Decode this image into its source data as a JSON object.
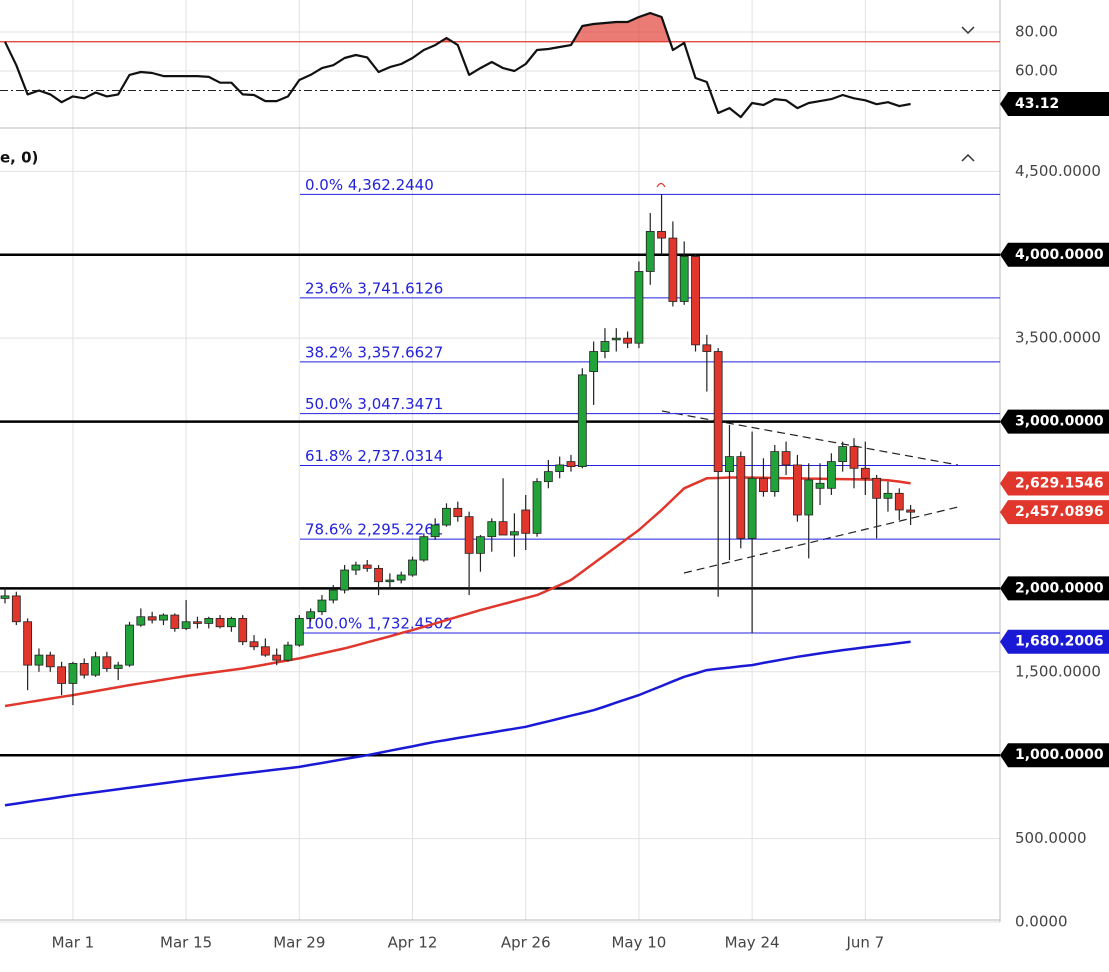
{
  "chart_data": [
    {
      "type": "candlestick",
      "label": "e, 0)",
      "categories": [
        null,
        null,
        null,
        null,
        null,
        null,
        "Mar 1",
        null,
        null,
        null,
        null,
        null,
        null,
        null,
        null,
        null,
        "Mar 15",
        null,
        null,
        null,
        null,
        null,
        null,
        null,
        null,
        null,
        "Mar 29",
        null,
        null,
        null,
        null,
        null,
        null,
        null,
        null,
        null,
        "Apr 12",
        null,
        null,
        null,
        null,
        null,
        null,
        null,
        null,
        null,
        "Apr 26",
        null,
        null,
        null,
        null,
        null,
        null,
        null,
        null,
        null,
        "May 10",
        null,
        null,
        null,
        null,
        null,
        null,
        null,
        null,
        null,
        "May 24",
        null,
        null,
        null,
        null,
        null,
        null,
        null,
        null,
        null,
        "Jun 7",
        null,
        null,
        null,
        null
      ],
      "candles": [
        [
          1940,
          2000,
          1910,
          1955
        ],
        [
          1955,
          1980,
          1780,
          1800
        ],
        [
          1800,
          1820,
          1390,
          1540
        ],
        [
          1540,
          1640,
          1500,
          1600
        ],
        [
          1600,
          1620,
          1500,
          1530
        ],
        [
          1530,
          1560,
          1360,
          1430
        ],
        [
          1430,
          1560,
          1300,
          1550
        ],
        [
          1550,
          1580,
          1460,
          1480
        ],
        [
          1480,
          1620,
          1470,
          1590
        ],
        [
          1590,
          1620,
          1500,
          1520
        ],
        [
          1520,
          1560,
          1450,
          1540
        ],
        [
          1540,
          1800,
          1530,
          1780
        ],
        [
          1780,
          1880,
          1770,
          1830
        ],
        [
          1830,
          1860,
          1790,
          1810
        ],
        [
          1810,
          1850,
          1780,
          1840
        ],
        [
          1840,
          1850,
          1740,
          1760
        ],
        [
          1760,
          1930,
          1750,
          1800
        ],
        [
          1800,
          1830,
          1760,
          1790
        ],
        [
          1790,
          1830,
          1760,
          1820
        ],
        [
          1820,
          1840,
          1760,
          1770
        ],
        [
          1770,
          1830,
          1740,
          1820
        ],
        [
          1820,
          1840,
          1660,
          1680
        ],
        [
          1680,
          1720,
          1630,
          1650
        ],
        [
          1650,
          1700,
          1590,
          1600
        ],
        [
          1600,
          1640,
          1540,
          1570
        ],
        [
          1570,
          1680,
          1560,
          1660
        ],
        [
          1660,
          1840,
          1650,
          1820
        ],
        [
          1820,
          1880,
          1800,
          1860
        ],
        [
          1860,
          1960,
          1840,
          1930
        ],
        [
          1930,
          2020,
          1910,
          1990
        ],
        [
          1990,
          2140,
          1970,
          2110
        ],
        [
          2110,
          2160,
          2080,
          2140
        ],
        [
          2140,
          2170,
          2100,
          2120
        ],
        [
          2120,
          2140,
          1960,
          2040
        ],
        [
          2040,
          2090,
          2000,
          2050
        ],
        [
          2050,
          2100,
          2030,
          2080
        ],
        [
          2080,
          2190,
          2070,
          2170
        ],
        [
          2170,
          2330,
          2160,
          2310
        ],
        [
          2310,
          2420,
          2290,
          2380
        ],
        [
          2380,
          2510,
          2370,
          2480
        ],
        [
          2480,
          2520,
          2400,
          2430
        ],
        [
          2430,
          2460,
          1960,
          2210
        ],
        [
          2210,
          2320,
          2100,
          2310
        ],
        [
          2310,
          2420,
          2220,
          2400
        ],
        [
          2400,
          2660,
          2350,
          2320
        ],
        [
          2320,
          2450,
          2190,
          2340
        ],
        [
          2470,
          2560,
          2230,
          2330
        ],
        [
          2330,
          2660,
          2310,
          2640
        ],
        [
          2640,
          2770,
          2600,
          2700
        ],
        [
          2700,
          2790,
          2660,
          2740
        ],
        [
          2760,
          2800,
          2700,
          2730
        ],
        [
          2730,
          3320,
          2720,
          3280
        ],
        [
          3300,
          3480,
          3100,
          3420
        ],
        [
          3420,
          3560,
          3380,
          3480
        ],
        [
          3490,
          3560,
          3420,
          3500
        ],
        [
          3500,
          3540,
          3440,
          3470
        ],
        [
          3470,
          3960,
          3440,
          3900
        ],
        [
          3900,
          4250,
          3820,
          4140
        ],
        [
          4140,
          4362.244,
          4000,
          4100
        ],
        [
          4100,
          4200,
          3690,
          3720
        ],
        [
          3720,
          4080,
          3700,
          3990
        ],
        [
          3990,
          4000,
          3420,
          3460
        ],
        [
          3460,
          3520,
          3180,
          3420
        ],
        [
          3420,
          3440,
          1950,
          2700
        ],
        [
          2700,
          2980,
          2170,
          2790
        ],
        [
          2790,
          2820,
          2240,
          2300
        ],
        [
          2300,
          2940,
          1732.4502,
          2660
        ],
        [
          2660,
          2780,
          2550,
          2580
        ],
        [
          2580,
          2860,
          2550,
          2820
        ],
        [
          2820,
          2880,
          2680,
          2740
        ],
        [
          2740,
          2800,
          2400,
          2440
        ],
        [
          2440,
          2750,
          2180,
          2650
        ],
        [
          2600,
          2750,
          2500,
          2630
        ],
        [
          2600,
          2810,
          2560,
          2760
        ],
        [
          2760,
          2880,
          2700,
          2850
        ],
        [
          2850,
          2900,
          2600,
          2720
        ],
        [
          2720,
          2880,
          2560,
          2660
        ],
        [
          2660,
          2680,
          2300,
          2540
        ],
        [
          2540,
          2640,
          2460,
          2570
        ],
        [
          2570,
          2600,
          2410,
          2470
        ],
        [
          2470,
          2500,
          2380,
          2457.0896
        ]
      ],
      "close_label": "2,457.0896",
      "up_color": "#22a33a",
      "down_color": "#e0362b",
      "overlays": [
        {
          "color": "#e0362b",
          "last_label": "2,629.1546",
          "values": [
            1295,
            1306,
            1317,
            1328,
            1339,
            1350,
            1360,
            1372,
            1384,
            1396,
            1408,
            1420,
            1431,
            1442,
            1453,
            1464,
            1475,
            1484,
            1493,
            1502,
            1511,
            1520,
            1532,
            1544,
            1556,
            1568,
            1580,
            1595,
            1610,
            1625,
            1640,
            1658,
            1677,
            1695,
            1713,
            1732,
            1750,
            1770,
            1790,
            1810,
            1830,
            1850,
            1870,
            1888,
            1906,
            1924,
            1942,
            1960,
            1990,
            2020,
            2050,
            2100,
            2150,
            2200,
            2250,
            2300,
            2350,
            2410,
            2470,
            2535,
            2600,
            2630,
            2660,
            2662,
            2665,
            2665,
            2664,
            2663,
            2662,
            2660,
            2660,
            2658,
            2657,
            2656,
            2655,
            2654,
            2653,
            2652,
            2648,
            2640,
            2629.1546
          ]
        },
        {
          "color": "#1a1ad6",
          "last_label": "1,680.2006",
          "values": [
            700,
            710,
            720,
            730,
            740,
            750,
            760,
            769,
            778,
            787,
            796,
            805,
            814,
            823,
            832,
            841,
            850,
            858,
            866,
            874,
            882,
            890,
            898,
            906,
            914,
            922,
            930,
            942,
            953,
            965,
            977,
            988,
            1000,
            1013,
            1027,
            1040,
            1053,
            1067,
            1080,
            1091,
            1103,
            1114,
            1125,
            1136,
            1148,
            1159,
            1170,
            1187,
            1203,
            1220,
            1237,
            1253,
            1270,
            1292,
            1315,
            1338,
            1360,
            1388,
            1415,
            1443,
            1470,
            1490,
            1510,
            1518,
            1525,
            1533,
            1540,
            1553,
            1565,
            1578,
            1590,
            1600,
            1610,
            1620,
            1630,
            1638,
            1647,
            1655,
            1663,
            1672,
            1680.2006
          ]
        }
      ],
      "levels": [
        {
          "value": 4000,
          "label": "4,000.0000"
        },
        {
          "value": 3000,
          "label": "3,000.0000"
        },
        {
          "value": 2000,
          "label": "2,000.0000"
        },
        {
          "value": 1000,
          "label": "1,000.0000"
        }
      ],
      "fib": [
        {
          "value": 4362.244,
          "label": "0.0% 4,362.2440"
        },
        {
          "value": 3741.6126,
          "label": "23.6% 3,741.6126"
        },
        {
          "value": 3357.6627,
          "label": "38.2% 3,357.6627"
        },
        {
          "value": 3047.3471,
          "label": "50.0% 3,047.3471"
        },
        {
          "value": 2737.0314,
          "label": "61.8% 2,737.0314"
        },
        {
          "value": 2295.2261,
          "label": "78.6% 2,295.2261"
        },
        {
          "value": 1732.4502,
          "label": "100.0% 1,732.4502"
        }
      ],
      "fib_color": "#2222dd",
      "ylim": [
        0,
        4760
      ],
      "yticks": [
        {
          "value": 0,
          "label": "0.0000"
        },
        {
          "value": 500,
          "label": "500.0000"
        },
        {
          "value": 1500,
          "label": "1,500.0000"
        },
        {
          "value": 3500,
          "label": "3,500.0000"
        },
        {
          "value": 4500,
          "label": "4,500.0000"
        }
      ],
      "grid": true
    },
    {
      "type": "line",
      "color": "#111111",
      "values": [
        75,
        63,
        48,
        50,
        48,
        44,
        47,
        46,
        49,
        47,
        48,
        58,
        59.5,
        59,
        57.4,
        57.4,
        57.4,
        57.4,
        57,
        54,
        54,
        48,
        47.7,
        44.6,
        44.6,
        47,
        55.4,
        58,
        61.5,
        63,
        66.7,
        68.2,
        67,
        59.5,
        62,
        63.6,
        66.7,
        70.8,
        73.3,
        76.9,
        73.3,
        58,
        61.5,
        64.6,
        61.5,
        60,
        63.6,
        70.8,
        71.3,
        72.3,
        73.3,
        83.1,
        84.1,
        84.6,
        85.1,
        85.1,
        87.7,
        89.7,
        87.7,
        70.8,
        74.4,
        56.4,
        54.4,
        38.5,
        41,
        36.4,
        43.6,
        42.6,
        45.6,
        45,
        41,
        43.6,
        44.6,
        45.6,
        47.7,
        46,
        45,
        43,
        44,
        42,
        43.12
      ],
      "ylim": [
        30.8,
        96.4
      ],
      "yticks": [
        {
          "value": 60,
          "label": "60.00"
        },
        {
          "value": 80,
          "label": "80.00"
        }
      ],
      "overbought": 75,
      "overbought_color": "#e0362b",
      "midline": 50,
      "grid": true
    }
  ]
}
